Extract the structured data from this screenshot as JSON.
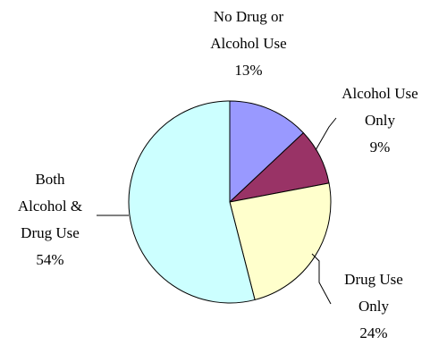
{
  "chart_data": {
    "type": "pie",
    "start_angle_deg": 0,
    "direction": "clockwise",
    "slices": [
      {
        "label_lines": [
          "No Drug or",
          "Alcohol Use"
        ],
        "value_text": "13%",
        "value": 13,
        "color": "#9999ff"
      },
      {
        "label_lines": [
          "Alcohol Use",
          "Only"
        ],
        "value_text": "9%",
        "value": 9,
        "color": "#993366"
      },
      {
        "label_lines": [
          "Drug Use",
          "Only"
        ],
        "value_text": "24%",
        "value": 24,
        "color": "#ffffcc"
      },
      {
        "label_lines": [
          "Both",
          "Alcohol &",
          "Drug Use"
        ],
        "value_text": "54%",
        "value": 54,
        "color": "#ccffff"
      }
    ]
  }
}
